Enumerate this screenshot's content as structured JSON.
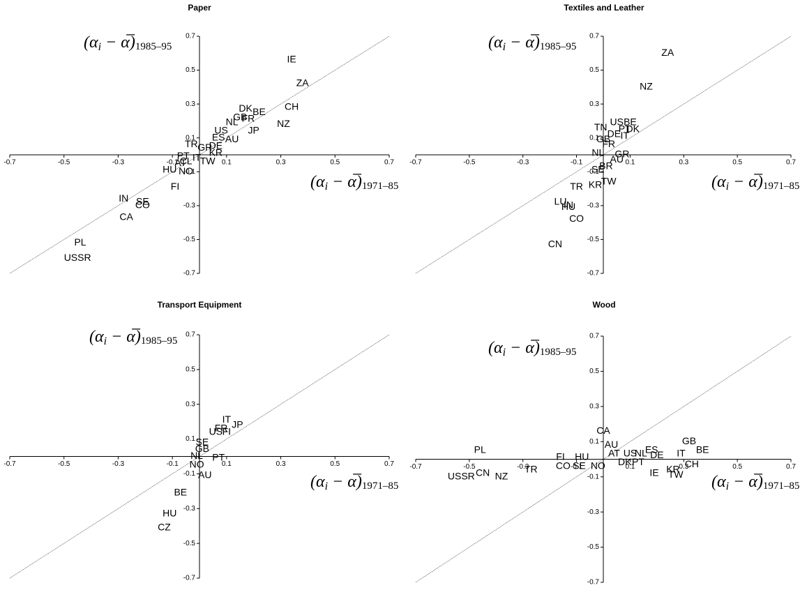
{
  "chart_data": [
    {
      "type": "scatter",
      "title": "Paper",
      "y_label": [
        "(α",
        "i",
        " − α̅)",
        "1985–95"
      ],
      "x_label": [
        "(α",
        "i",
        " − α̅)",
        "1971–85"
      ],
      "labels": [
        "IE",
        "ZA",
        "CH",
        "NZ",
        "DK",
        "BE",
        "GB",
        "FR",
        "NL",
        "JP",
        "US",
        "ES",
        "AU",
        "DE",
        "TR",
        "GR",
        "KR",
        "PT",
        "IT",
        "AT",
        "CL",
        "TW",
        "HU",
        "NO",
        "FI",
        "IN",
        "SE",
        "CO",
        "CA",
        "PL",
        "USSR"
      ],
      "x": [
        0.34,
        0.38,
        0.34,
        0.31,
        0.17,
        0.22,
        0.15,
        0.18,
        0.12,
        0.2,
        0.08,
        0.07,
        0.12,
        0.06,
        -0.03,
        0.02,
        0.06,
        -0.06,
        -0.01,
        -0.07,
        -0.05,
        0.03,
        -0.11,
        -0.05,
        -0.09,
        -0.28,
        -0.21,
        -0.21,
        -0.27,
        -0.44,
        -0.45
      ],
      "y": [
        0.56,
        0.42,
        0.28,
        0.18,
        0.27,
        0.25,
        0.22,
        0.21,
        0.19,
        0.14,
        0.14,
        0.1,
        0.09,
        0.05,
        0.06,
        0.04,
        0.01,
        -0.01,
        -0.02,
        -0.05,
        -0.04,
        -0.04,
        -0.09,
        -0.1,
        -0.19,
        -0.26,
        -0.28,
        -0.3,
        -0.37,
        -0.52,
        -0.61
      ],
      "xlim": [
        -0.7,
        0.7
      ],
      "ylim": [
        -0.7,
        0.7
      ],
      "xticks": [
        -0.7,
        -0.5,
        -0.3,
        -0.1,
        0.1,
        0.3,
        0.5,
        0.7
      ],
      "yticks": [
        -0.7,
        -0.5,
        -0.3,
        -0.1,
        0.1,
        0.3,
        0.5,
        0.7
      ]
    },
    {
      "type": "scatter",
      "title": "Textiles and Leather",
      "y_label": [
        "(α",
        "i",
        " − α̅)",
        "1985–95"
      ],
      "x_label": [
        "(α",
        "i",
        " − α̅)",
        "1971–85"
      ],
      "labels": [
        "ZA",
        "NZ",
        "TN",
        "US",
        "BE",
        "DK",
        "PT",
        "IT",
        "DE",
        "GB",
        "FR",
        "NL",
        "GR",
        "AU",
        "SE",
        "BR",
        "TW",
        "KR",
        "TR",
        "LU",
        "IN",
        "HU",
        "CO",
        "CN"
      ],
      "x": [
        0.24,
        0.16,
        -0.01,
        0.05,
        0.1,
        0.11,
        0.08,
        0.08,
        0.04,
        0.0,
        0.02,
        -0.02,
        0.07,
        0.05,
        -0.02,
        0.01,
        0.02,
        -0.03,
        -0.1,
        -0.16,
        -0.13,
        -0.13,
        -0.1,
        -0.18
      ],
      "y": [
        0.6,
        0.4,
        0.16,
        0.19,
        0.19,
        0.15,
        0.15,
        0.11,
        0.12,
        0.09,
        0.06,
        0.01,
        0.0,
        -0.03,
        -0.09,
        -0.07,
        -0.16,
        -0.18,
        -0.19,
        -0.28,
        -0.3,
        -0.31,
        -0.38,
        -0.53
      ],
      "xlim": [
        -0.7,
        0.7
      ],
      "ylim": [
        -0.7,
        0.7
      ],
      "xticks": [
        -0.7,
        -0.5,
        -0.3,
        -0.1,
        0.1,
        0.3,
        0.5,
        0.7
      ],
      "yticks": [
        -0.7,
        -0.5,
        -0.3,
        -0.1,
        0.1,
        0.3,
        0.5,
        0.7
      ]
    },
    {
      "type": "scatter",
      "title": "Transport Equipment",
      "y_label": [
        "(α",
        "i",
        " − α̅)",
        "1985–95"
      ],
      "x_label": [
        "(α",
        "i",
        " − α̅)",
        "1971–85"
      ],
      "labels": [
        "IT",
        "JP",
        "FR",
        "US",
        "FI",
        "SE",
        "GB",
        "NL",
        "PT",
        "NO",
        "AU",
        "BE",
        "HU",
        "CZ"
      ],
      "x": [
        0.1,
        0.14,
        0.08,
        0.06,
        0.1,
        0.01,
        0.01,
        -0.01,
        0.07,
        -0.01,
        0.02,
        -0.07,
        -0.11,
        -0.13
      ],
      "y": [
        0.21,
        0.18,
        0.16,
        0.14,
        0.14,
        0.08,
        0.04,
        0.0,
        -0.01,
        -0.05,
        -0.11,
        -0.21,
        -0.33,
        -0.41
      ],
      "xlim": [
        -0.7,
        0.7
      ],
      "ylim": [
        -0.7,
        0.7
      ],
      "xticks": [
        -0.7,
        -0.5,
        -0.3,
        -0.1,
        0.1,
        0.3,
        0.5,
        0.7
      ],
      "yticks": [
        -0.7,
        -0.5,
        -0.3,
        -0.1,
        0.1,
        0.3,
        0.5,
        0.7
      ]
    },
    {
      "type": "scatter",
      "title": "Wood",
      "y_label": [
        "(α",
        "i",
        " − α̅)",
        "1985–95"
      ],
      "x_label": [
        "(α",
        "i",
        " − α̅)",
        "1971–85"
      ],
      "labels": [
        "CA",
        "AU",
        "GB",
        "BE",
        "IT",
        "ES",
        "NL",
        "DE",
        "US",
        "AT",
        "HU",
        "FI",
        "NO",
        "SE",
        "CO",
        "DK",
        "PT",
        "CH",
        "KR",
        "TW",
        "IE",
        "PL",
        "TR",
        "CN",
        "USSR",
        "NZ"
      ],
      "x": [
        0.0,
        0.03,
        0.32,
        0.37,
        0.29,
        0.18,
        0.14,
        0.2,
        0.1,
        0.04,
        -0.08,
        -0.16,
        -0.02,
        -0.09,
        -0.15,
        0.08,
        0.13,
        0.33,
        0.26,
        0.27,
        0.19,
        -0.46,
        -0.27,
        -0.45,
        -0.53,
        -0.38
      ],
      "y": [
        0.16,
        0.08,
        0.1,
        0.05,
        0.03,
        0.05,
        0.03,
        0.02,
        0.03,
        0.03,
        0.01,
        0.01,
        -0.04,
        -0.04,
        -0.04,
        -0.02,
        -0.02,
        -0.03,
        -0.06,
        -0.09,
        -0.08,
        0.05,
        -0.06,
        -0.08,
        -0.1,
        -0.1
      ],
      "xlim": [
        -0.7,
        0.7
      ],
      "ylim": [
        -0.7,
        0.7
      ],
      "xticks": [
        -0.7,
        -0.5,
        -0.3,
        -0.1,
        0.1,
        0.3,
        0.5,
        0.7
      ],
      "yticks": [
        -0.7,
        -0.5,
        -0.3,
        -0.1,
        0.1,
        0.3,
        0.5,
        0.7
      ]
    }
  ]
}
